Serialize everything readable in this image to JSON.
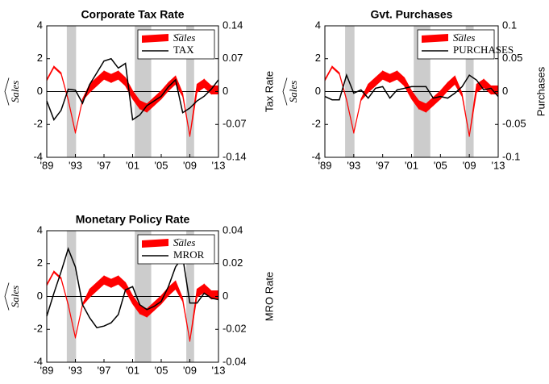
{
  "chart_data": [
    {
      "type": "line",
      "title": "Corporate Tax Rate",
      "ylabel": "Sales",
      "y2label": "Tax Rate",
      "x": [
        1989,
        1990,
        1991,
        1992,
        1993,
        1994,
        1995,
        1996,
        1997,
        1998,
        1999,
        2000,
        2001,
        2002,
        2003,
        2004,
        2005,
        2006,
        2007,
        2008,
        2009,
        2010,
        2011,
        2012,
        2013
      ],
      "xlim": [
        1989,
        2013
      ],
      "xticks": [
        {
          "value": 1989,
          "label": "'89"
        },
        {
          "value": 1993,
          "label": "'93"
        },
        {
          "value": 1997,
          "label": "'97"
        },
        {
          "value": 2001,
          "label": "'01"
        },
        {
          "value": 2005,
          "label": "'05"
        },
        {
          "value": 2009,
          "label": "'09"
        },
        {
          "value": 2013,
          "label": "'13"
        }
      ],
      "ylim": [
        -4,
        4
      ],
      "yticks": [
        -4,
        -2,
        0,
        2,
        4
      ],
      "y2lim": [
        -0.14,
        0.14
      ],
      "y2ticks": [
        -0.14,
        -0.07,
        0,
        0.07,
        0.14
      ],
      "shaded_ranges": [
        [
          1991.8,
          1993.1
        ],
        [
          2001.3,
          2003.6
        ],
        [
          2008.5,
          2009.6
        ]
      ],
      "band": {
        "name": "Sales",
        "color": "#ff0000",
        "upper": [
          0.75,
          1.55,
          1.15,
          -0.45,
          -2.45,
          -0.45,
          0.45,
          0.85,
          1.25,
          1.05,
          1.25,
          0.85,
          0.05,
          -0.55,
          -0.75,
          -0.35,
          0.05,
          0.55,
          0.95,
          -0.1,
          -2.65,
          0.45,
          0.75,
          0.35,
          0.35
        ],
        "lower": [
          0.65,
          1.45,
          1.05,
          -0.55,
          -2.55,
          -0.55,
          -0.05,
          0.35,
          0.75,
          0.55,
          0.75,
          0.35,
          -0.45,
          -1.05,
          -1.25,
          -0.85,
          -0.45,
          0.05,
          0.45,
          -0.3,
          -2.75,
          -0.05,
          0.25,
          -0.15,
          -0.15
        ]
      },
      "series": [
        {
          "name": "TAX",
          "color": "#000000",
          "axis": "y2",
          "values": [
            -0.02,
            -0.06,
            -0.04,
            0.005,
            0.003,
            -0.025,
            0.015,
            0.04,
            0.065,
            0.07,
            0.05,
            0.06,
            -0.06,
            -0.05,
            -0.03,
            -0.02,
            -0.01,
            0.01,
            0.025,
            -0.045,
            -0.035,
            -0.02,
            -0.01,
            0.005,
            0.025
          ]
        }
      ]
    },
    {
      "type": "line",
      "title": "Gvt. Purchases",
      "ylabel": "Sales",
      "y2label": "Purchases",
      "x": [
        1989,
        1990,
        1991,
        1992,
        1993,
        1994,
        1995,
        1996,
        1997,
        1998,
        1999,
        2000,
        2001,
        2002,
        2003,
        2004,
        2005,
        2006,
        2007,
        2008,
        2009,
        2010,
        2011,
        2012,
        2013
      ],
      "xlim": [
        1989,
        2013
      ],
      "xticks": [
        {
          "value": 1989,
          "label": "'89"
        },
        {
          "value": 1993,
          "label": "'93"
        },
        {
          "value": 1997,
          "label": "'97"
        },
        {
          "value": 2001,
          "label": "'01"
        },
        {
          "value": 2005,
          "label": "'05"
        },
        {
          "value": 2009,
          "label": "'09"
        },
        {
          "value": 2013,
          "label": "'13"
        }
      ],
      "ylim": [
        -4,
        4
      ],
      "yticks": [
        -4,
        -2,
        0,
        2,
        4
      ],
      "y2lim": [
        -0.1,
        0.1
      ],
      "y2ticks": [
        -0.1,
        -0.05,
        0,
        0.05,
        0.1
      ],
      "shaded_ranges": [
        [
          1991.8,
          1993.1
        ],
        [
          2001.3,
          2003.6
        ],
        [
          2008.5,
          2009.6
        ]
      ],
      "band": {
        "name": "Sales",
        "color": "#ff0000",
        "upper": [
          0.75,
          1.55,
          1.15,
          -0.45,
          -2.45,
          -0.45,
          0.45,
          0.85,
          1.25,
          1.05,
          1.25,
          0.85,
          0.05,
          -0.55,
          -0.75,
          -0.35,
          0.05,
          0.55,
          0.95,
          -0.1,
          -2.65,
          0.45,
          0.75,
          0.35,
          0.35
        ],
        "lower": [
          0.65,
          1.45,
          1.05,
          -0.55,
          -2.55,
          -0.55,
          -0.05,
          0.35,
          0.75,
          0.55,
          0.75,
          0.35,
          -0.45,
          -1.05,
          -1.25,
          -0.85,
          -0.45,
          0.05,
          0.45,
          -0.3,
          -2.75,
          -0.05,
          0.25,
          -0.15,
          -0.15
        ]
      },
      "series": [
        {
          "name": "PURCHASES",
          "color": "#000000",
          "axis": "y2",
          "values": [
            -0.0075,
            -0.0125,
            -0.0125,
            0.025,
            -0.0025,
            0.0025,
            -0.01,
            0.005,
            0.0075,
            -0.01,
            0.0025,
            0.005,
            0.0075,
            0.0075,
            0.0075,
            -0.01,
            -0.0075,
            -0.01,
            -0.0025,
            0.0075,
            0.025,
            0.0175,
            0.0025,
            0.005,
            -0.0075
          ]
        }
      ]
    },
    {
      "type": "line",
      "title": "Monetary Policy Rate",
      "ylabel": "Sales",
      "y2label": "MRO Rate",
      "x": [
        1989,
        1990,
        1991,
        1992,
        1993,
        1994,
        1995,
        1996,
        1997,
        1998,
        1999,
        2000,
        2001,
        2002,
        2003,
        2004,
        2005,
        2006,
        2007,
        2008,
        2009,
        2010,
        2011,
        2012,
        2013
      ],
      "xlim": [
        1989,
        2013
      ],
      "xticks": [
        {
          "value": 1989,
          "label": "'89"
        },
        {
          "value": 1993,
          "label": "'93"
        },
        {
          "value": 1997,
          "label": "'97"
        },
        {
          "value": 2001,
          "label": "'01"
        },
        {
          "value": 2005,
          "label": "'05"
        },
        {
          "value": 2009,
          "label": "'09"
        },
        {
          "value": 2013,
          "label": "'13"
        }
      ],
      "ylim": [
        -4,
        4
      ],
      "yticks": [
        -4,
        -2,
        0,
        2,
        4
      ],
      "y2lim": [
        -0.04,
        0.04
      ],
      "y2ticks": [
        -0.04,
        -0.02,
        0,
        0.02,
        0.04
      ],
      "shaded_ranges": [
        [
          1991.8,
          1993.1
        ],
        [
          2001.3,
          2003.6
        ],
        [
          2008.5,
          2009.6
        ]
      ],
      "band": {
        "name": "Sales",
        "color": "#ff0000",
        "upper": [
          0.75,
          1.55,
          1.15,
          -0.45,
          -2.45,
          -0.45,
          0.45,
          0.85,
          1.25,
          1.05,
          1.25,
          0.85,
          0.05,
          -0.55,
          -0.75,
          -0.35,
          0.05,
          0.55,
          0.95,
          -0.1,
          -2.65,
          0.45,
          0.75,
          0.35,
          0.35
        ],
        "lower": [
          0.65,
          1.45,
          1.05,
          -0.55,
          -2.55,
          -0.55,
          -0.05,
          0.35,
          0.75,
          0.55,
          0.75,
          0.35,
          -0.45,
          -1.05,
          -1.25,
          -0.85,
          -0.45,
          0.05,
          0.45,
          -0.3,
          -2.75,
          -0.05,
          0.25,
          -0.15,
          -0.15
        ]
      },
      "series": [
        {
          "name": "MROR",
          "color": "#000000",
          "axis": "y2",
          "values": [
            -0.012,
            0.002,
            0.015,
            0.029,
            0.018,
            -0.005,
            -0.013,
            -0.019,
            -0.018,
            -0.016,
            -0.011,
            0.004,
            0.006,
            -0.005,
            -0.008,
            -0.006,
            -0.003,
            0.006,
            0.018,
            0.024,
            -0.004,
            -0.004,
            0.002,
            -0.001,
            -0.002
          ]
        }
      ]
    }
  ]
}
